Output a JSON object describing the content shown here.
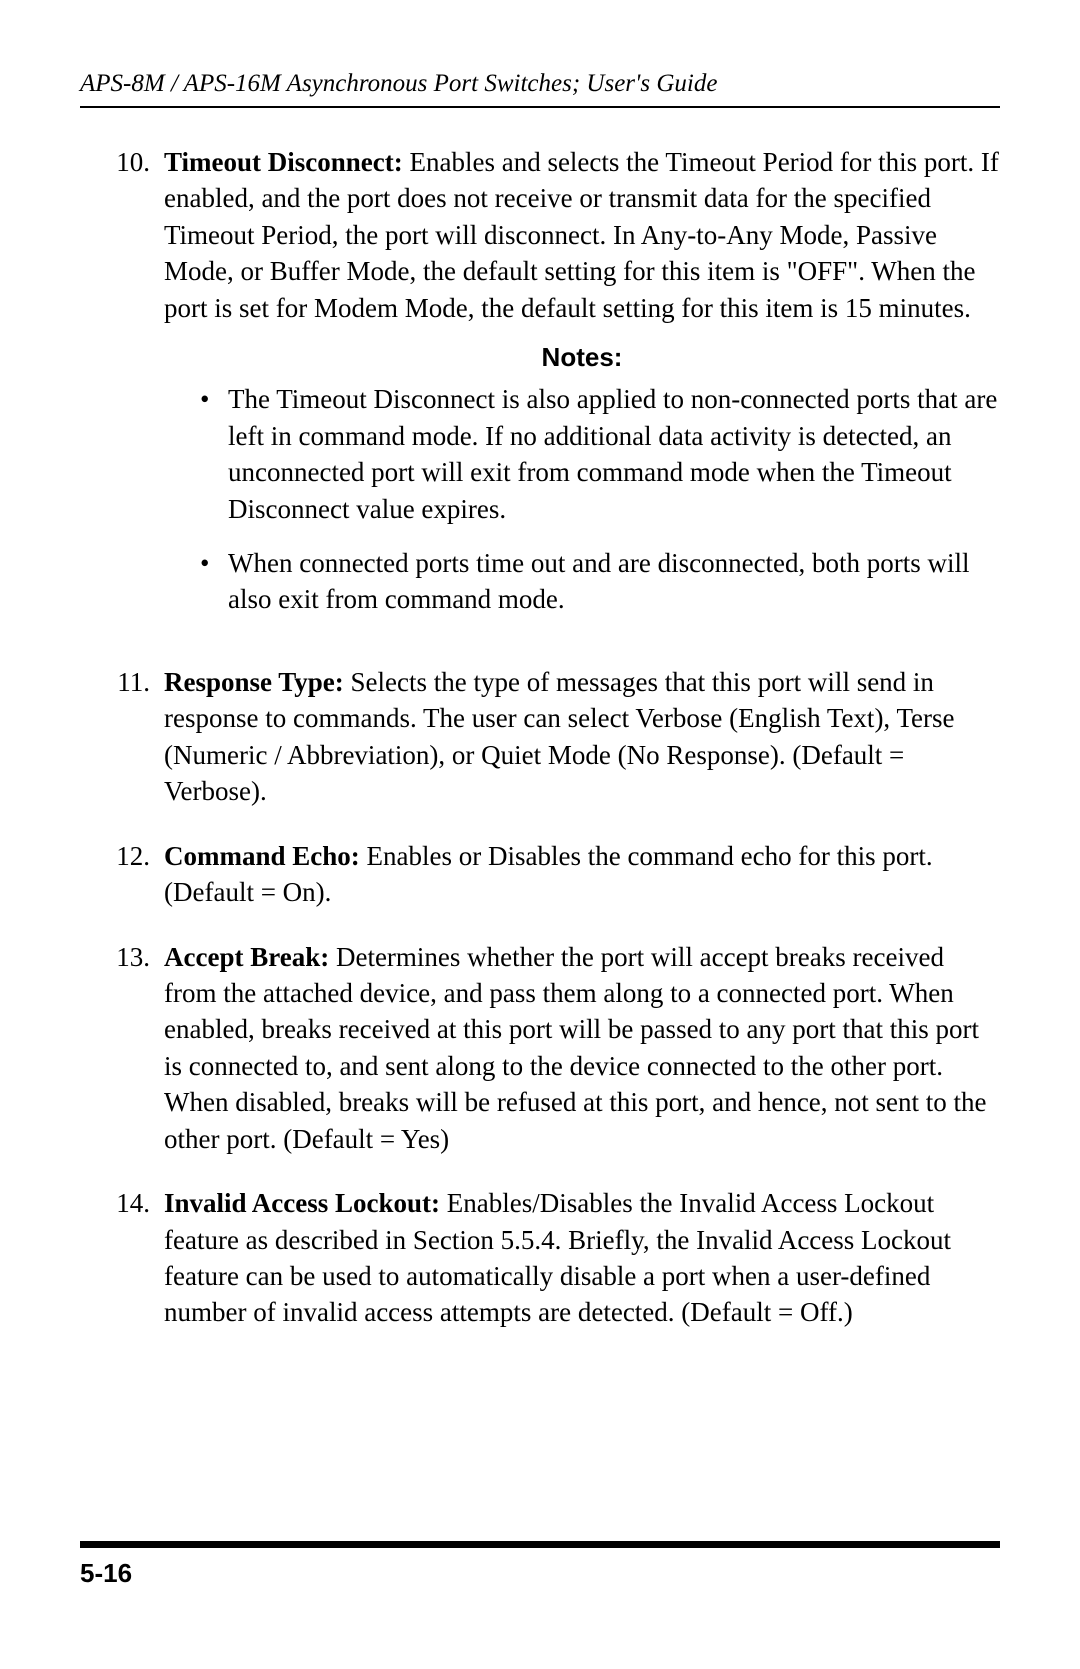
{
  "header": {
    "title": "APS-8M / APS-16M Asynchronous Port Switches; User's Guide"
  },
  "items": [
    {
      "number": "10.",
      "term": "Timeout Disconnect:",
      "text": "  Enables and selects the Timeout Period for this port.  If enabled, and the port does not receive or transmit data for the specified Timeout Period, the port will disconnect.  In Any-to-Any Mode, Passive Mode, or Buffer Mode, the default setting for this item is \"OFF\".  When the port is set for Modem Mode, the default setting for this item is 15 minutes.",
      "notes": {
        "heading": "Notes:",
        "bullets": [
          "The Timeout Disconnect is also applied to non-connected ports that are left in command mode.  If no additional data activity is detected, an unconnected port will exit from command mode when the Timeout Disconnect value expires.",
          "When connected ports time out and are disconnected, both ports will also exit from command mode."
        ]
      }
    },
    {
      "number": "11.",
      "term": "Response Type:",
      "text": "  Selects the type of messages that this port will send in response to commands.  The user can select Verbose (English Text), Terse (Numeric / Abbreviation), or Quiet Mode (No Response).  (Default = Verbose)."
    },
    {
      "number": "12.",
      "term": "Command Echo:",
      "text": "  Enables or Disables the command echo for this port.  (Default = On)."
    },
    {
      "number": "13.",
      "term": "Accept Break:",
      "text": "  Determines whether the port will accept breaks received from the attached device, and pass them along to a connected port.  When enabled, breaks received at this port will be passed to any port that this port is connected to, and sent along to the device connected to the other port.  When disabled, breaks will be refused at this port, and hence, not sent to the other port.  (Default = Yes)"
    },
    {
      "number": "14.",
      "term": "Invalid Access Lockout:",
      "text": "  Enables/Disables the Invalid Access Lockout feature as described in Section 5.5.4.  Briefly, the Invalid Access Lockout feature can be used to automatically disable a port when a user-defined number of invalid access attempts are detected.  (Default = Off.)"
    }
  ],
  "footer": {
    "page": "5-16"
  }
}
